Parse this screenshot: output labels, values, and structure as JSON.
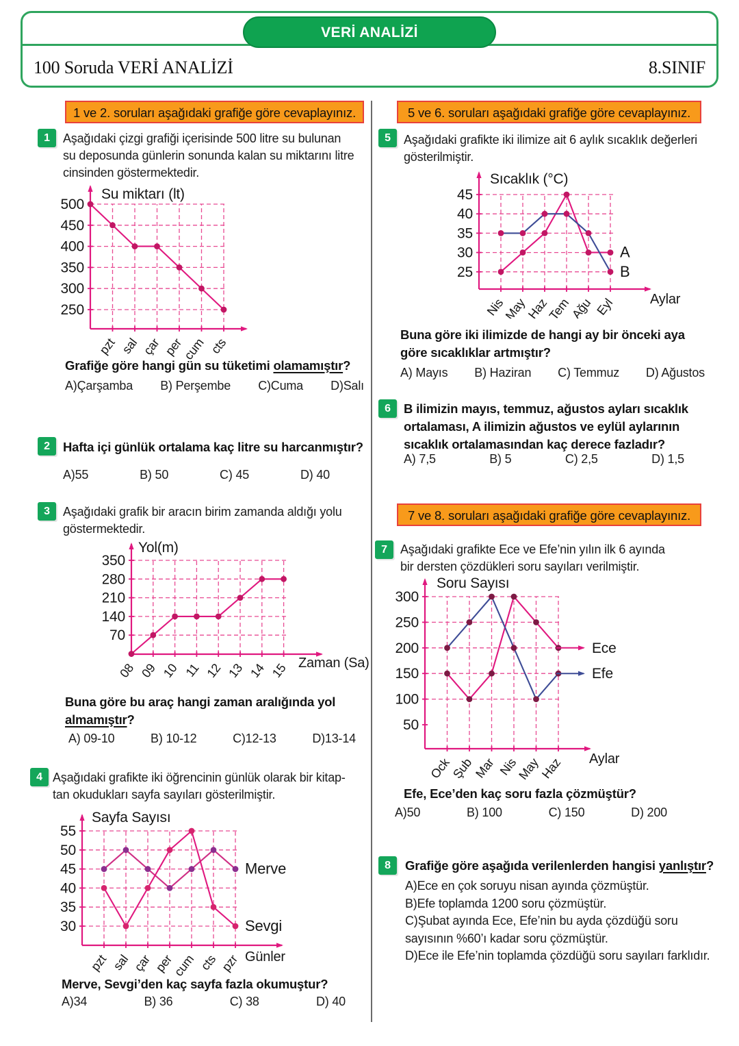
{
  "header": {
    "badge": "VERİ ANALİZİ",
    "title_left": "100 Soruda VERİ ANALİZİ",
    "title_right": "8.SINIF"
  },
  "banners": {
    "b12": "1 ve 2. soruları aşağıdaki grafiğe göre cevaplayınız.",
    "b56": "5 ve 6. soruları aşağıdaki grafiğe göre cevaplayınız.",
    "b78": "7 ve 8. soruları aşağıdaki grafiğe göre cevaplayınız."
  },
  "colors": {
    "green": "#14a65a",
    "orange": "#f89a1b",
    "banner_border": "#e8413c",
    "magenta": "#e0187f",
    "navy": "#3e4c96",
    "grid_pink": "#e84a93"
  },
  "questions": {
    "q1": {
      "number": "1",
      "intro_lines": [
        "Aşağıdaki çizgi grafiği içerisinde 500 litre su bulunan",
        "su deposunda günlerin sonunda kalan su miktarını litre",
        "cinsinden göstermektedir."
      ],
      "stem": {
        "pre": "Grafiğe göre hangi gün su tüketimi ",
        "u": "olamamıştır",
        "post": "?"
      },
      "options": [
        "A)Çarşamba",
        "B) Perşembe",
        "C)Cuma",
        "D)Salı"
      ]
    },
    "q2": {
      "number": "2",
      "stem": {
        "pre": "Hafta içi günlük ortalama kaç litre su harcanmıştır?",
        "u": "",
        "post": ""
      },
      "options": [
        "A)55",
        "B) 50",
        "C) 45",
        "D) 40"
      ]
    },
    "q3": {
      "number": "3",
      "intro_lines": [
        "Aşağıdaki grafik bir aracın birim zamanda aldığı yolu",
        "göstermektedir."
      ],
      "stem": {
        "pre": "Buna göre bu araç hangi zaman aralığında yol ",
        "u": "almamıştır",
        "post": "?"
      },
      "options": [
        "A) 09-10",
        "B) 10-12",
        "C)12-13",
        "D)13-14"
      ]
    },
    "q4": {
      "number": "4",
      "intro_lines": [
        "Aşağıdaki grafikte  iki öğrencinin günlük olarak bir kitap-",
        "tan okudukları sayfa sayıları gösterilmiştir."
      ],
      "stem": {
        "pre": "Merve, Sevgi’den kaç sayfa fazla okumuştur?",
        "u": "",
        "post": ""
      },
      "options": [
        "A)34",
        "B) 36",
        "C) 38",
        "D) 40"
      ]
    },
    "q5": {
      "number": "5",
      "intro_lines": [
        "Aşağıdaki grafikte iki ilimize ait  6 aylık sıcaklık değerleri",
        "gösterilmiştir."
      ],
      "stem": {
        "pre": "Buna göre iki ilimizde de hangi ay bir önceki aya göre sıcaklıklar artmıştır?",
        "u": "",
        "post": ""
      },
      "options": [
        "A) Mayıs",
        "B) Haziran",
        "C) Temmuz",
        "D) Ağustos"
      ]
    },
    "q6": {
      "number": "6",
      "stem": {
        "pre": "B ilimizin mayıs, temmuz, ağustos ayları sıcaklık ortalaması, A ilimizin ağustos ve  eylül aylarının sıcaklık ortalamasından kaç derece fazladır?",
        "u": "",
        "post": ""
      },
      "options": [
        "A) 7,5",
        "B) 5",
        "C) 2,5",
        "D) 1,5"
      ]
    },
    "q7": {
      "number": "7",
      "intro_lines": [
        "Aşağıdaki grafikte Ece ve Efe’nin yılın ilk 6 ayında",
        "bir dersten çözdükleri soru sayıları verilmiştir."
      ],
      "stem": {
        "pre": "Efe, Ece’den kaç soru fazla çözmüştür?",
        "u": "",
        "post": ""
      },
      "options": [
        "A)50",
        "B) 100",
        "C) 150",
        "D) 200"
      ]
    },
    "q8": {
      "number": "8",
      "stem": {
        "pre": "Grafiğe göre aşağıda verilenlerden hangisi ",
        "u": "yanlıştır",
        "post": "?"
      },
      "options": [
        "A)Ece en çok soruyu nisan ayında çözmüştür.",
        "B)Efe toplamda 1200 soru çözmüştür.",
        "C)Şubat ayında Ece, Efe’nin bu ayda çözdüğü soru sayısının %60’ı kadar soru çözmüştür.",
        "D)Ece ile Efe’nin toplamda çözdüğü soru sayıları farklıdır."
      ]
    }
  },
  "chart_data": [
    {
      "type": "line",
      "title": "Su miktarı (lt)",
      "xlabel": "",
      "categories": [
        "pzt",
        "sal",
        "çar",
        "per",
        "cum",
        "cts"
      ],
      "y_ticks": [
        500,
        450,
        400,
        350,
        300,
        250
      ],
      "series": [
        {
          "color": "#e0187f",
          "dot_color": "#c21664",
          "points": [
            [
              0,
              500
            ],
            [
              1,
              450
            ],
            [
              2,
              400
            ],
            [
              3,
              400
            ],
            [
              4,
              350
            ],
            [
              5,
              300
            ],
            [
              6,
              250
            ]
          ]
        }
      ]
    },
    {
      "type": "line",
      "title": "Yol(m)",
      "xlabel": "Zaman (Sa)",
      "x_start_at_axis": true,
      "categories": [
        "08",
        "09",
        "10",
        "11",
        "12",
        "13",
        "14",
        "15"
      ],
      "y_ticks": [
        350,
        280,
        210,
        140,
        70
      ],
      "series": [
        {
          "color": "#e0187f",
          "dot_color": "#c21664",
          "points": [
            [
              0,
              0
            ],
            [
              1,
              70
            ],
            [
              2,
              140
            ],
            [
              3,
              140
            ],
            [
              4,
              140
            ],
            [
              5,
              210
            ],
            [
              6,
              280
            ],
            [
              7,
              280
            ]
          ]
        }
      ]
    },
    {
      "type": "line",
      "title": "Sayfa Sayısı",
      "xlabel": "Günler",
      "categories": [
        "pzt",
        "sal",
        "çar",
        "per",
        "cum",
        "cts",
        "pzr"
      ],
      "y_ticks": [
        55,
        50,
        45,
        40,
        35,
        30
      ],
      "series": [
        {
          "name": "Merve",
          "end_label": true,
          "color": "#cf2f85",
          "dot_color": "#8c2f8f",
          "values": [
            45,
            50,
            45,
            40,
            45,
            50,
            45
          ]
        },
        {
          "name": "Sevgi",
          "end_label": true,
          "color": "#e0187f",
          "dot_color": "#d6246e",
          "values": [
            40,
            30,
            40,
            50,
            55,
            35,
            30
          ]
        }
      ]
    },
    {
      "type": "line",
      "title": "Sıcaklık (°C)",
      "xlabel": "Aylar",
      "categories": [
        "Nis",
        "May",
        "Haz",
        "Tem",
        "Ağu",
        "Eyl"
      ],
      "y_ticks": [
        45,
        40,
        35,
        30,
        25
      ],
      "series": [
        {
          "name": "A",
          "end_label": true,
          "color": "#e0187f",
          "dot_color": "#c21664",
          "values": [
            25,
            30,
            35,
            45,
            30,
            30
          ]
        },
        {
          "name": "B",
          "end_label": true,
          "color": "#3e4c96",
          "dot_color": "#c21664",
          "values": [
            35,
            35,
            40,
            40,
            35,
            25
          ]
        }
      ]
    },
    {
      "type": "line",
      "title": "Soru Sayısı",
      "xlabel": "Aylar",
      "categories": [
        "Ock",
        "Şub",
        "Mar",
        "Nis",
        "May",
        "Haz"
      ],
      "y_ticks": [
        300,
        250,
        200,
        150,
        100,
        50
      ],
      "series": [
        {
          "name": "Ece",
          "legend": true,
          "color": "#e0187f",
          "dot_color": "#7d1a44",
          "values": [
            150,
            100,
            150,
            300,
            250,
            200
          ]
        },
        {
          "name": "Efe",
          "legend": true,
          "color": "#3e4c96",
          "dot_color": "#7d1a44",
          "values": [
            200,
            250,
            300,
            200,
            100,
            150
          ]
        }
      ]
    }
  ]
}
